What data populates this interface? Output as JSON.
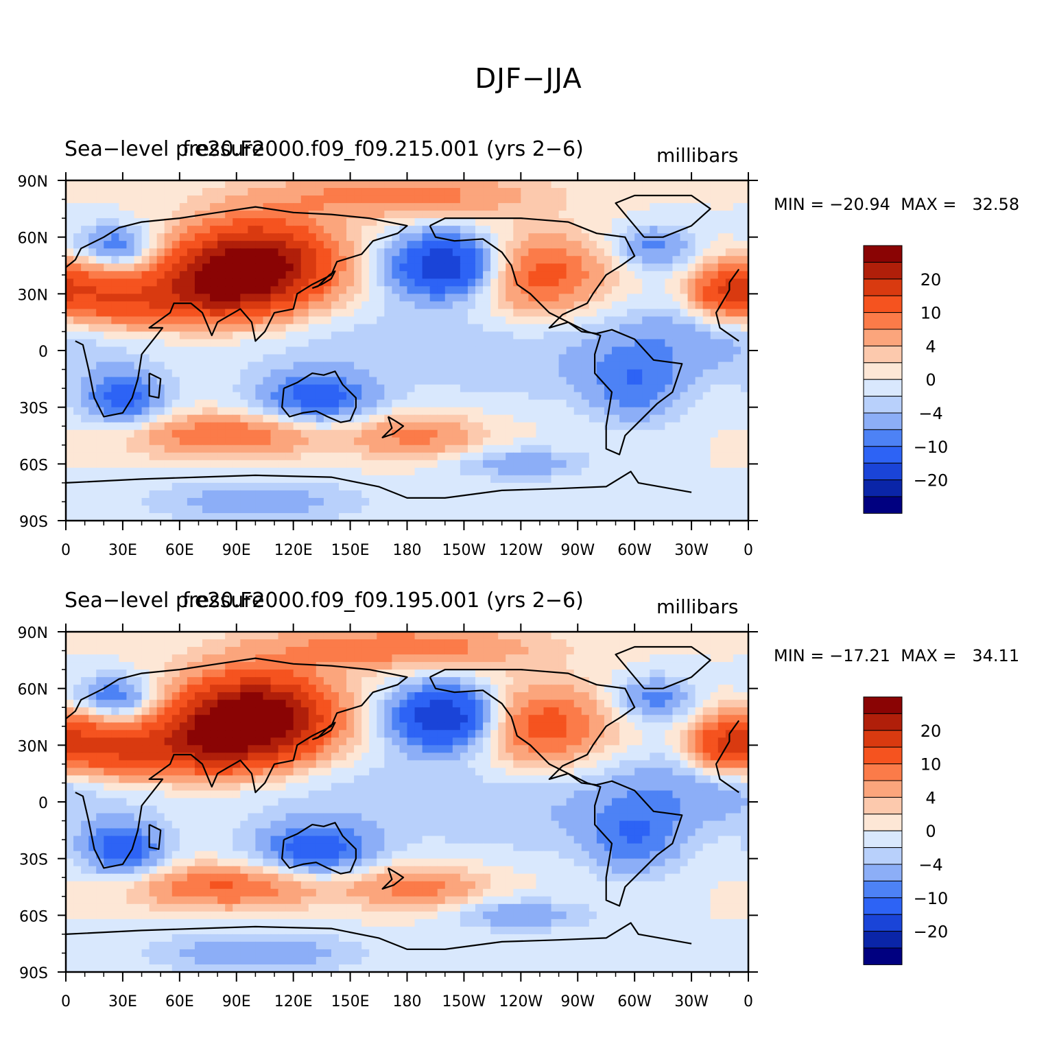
{
  "page": {
    "title": "DJF−JJA"
  },
  "colors": {
    "levels": [
      "#000080",
      "#0a25a8",
      "#1a44d8",
      "#2d63f5",
      "#4d82f5",
      "#8caef7",
      "#b8d0fb",
      "#d9e8fd",
      "#fde7d6",
      "#fcc9ad",
      "#fba57c",
      "#fb7b49",
      "#f5531f",
      "#d93a10",
      "#b01f0a",
      "#8a0404"
    ],
    "coast": "#000000"
  },
  "chart_data": [
    {
      "type": "heatmap",
      "title": "Sea−level pressure",
      "case": "f.e20.F2000.f09_f09.215.001 (yrs 2−6)",
      "units": "millibars",
      "min_label": "MIN = −20.94",
      "max_label": "MAX =   32.58",
      "min": -20.94,
      "max": 32.58,
      "x_tick_labels": [
        "0",
        "30E",
        "60E",
        "90E",
        "120E",
        "150E",
        "180",
        "150W",
        "120W",
        "90W",
        "60W",
        "30W",
        "0"
      ],
      "y_tick_labels": [
        "90N",
        "60N",
        "30N",
        "0",
        "30S",
        "60S",
        "90S"
      ],
      "colorbar_labels": [
        "20",
        "10",
        "4",
        "0",
        "−4",
        "−10",
        "−20"
      ],
      "xlim": [
        0,
        360
      ],
      "ylim": [
        -90,
        90
      ]
    },
    {
      "type": "heatmap",
      "title": "Sea−level pressure",
      "case": "f.e20.F2000.f09_f09.195.001 (yrs 2−6)",
      "units": "millibars",
      "min_label": "MIN = −17.21",
      "max_label": "MAX =   34.11",
      "min": -17.21,
      "max": 34.11,
      "x_tick_labels": [
        "0",
        "30E",
        "60E",
        "90E",
        "120E",
        "150E",
        "180",
        "150W",
        "120W",
        "90W",
        "60W",
        "30W",
        "0"
      ],
      "y_tick_labels": [
        "90N",
        "60N",
        "30N",
        "0",
        "30S",
        "60S",
        "90S"
      ],
      "colorbar_labels": [
        "20",
        "10",
        "4",
        "0",
        "−4",
        "−10",
        "−20"
      ],
      "xlim": [
        0,
        360
      ],
      "ylim": [
        -90,
        90
      ]
    }
  ]
}
